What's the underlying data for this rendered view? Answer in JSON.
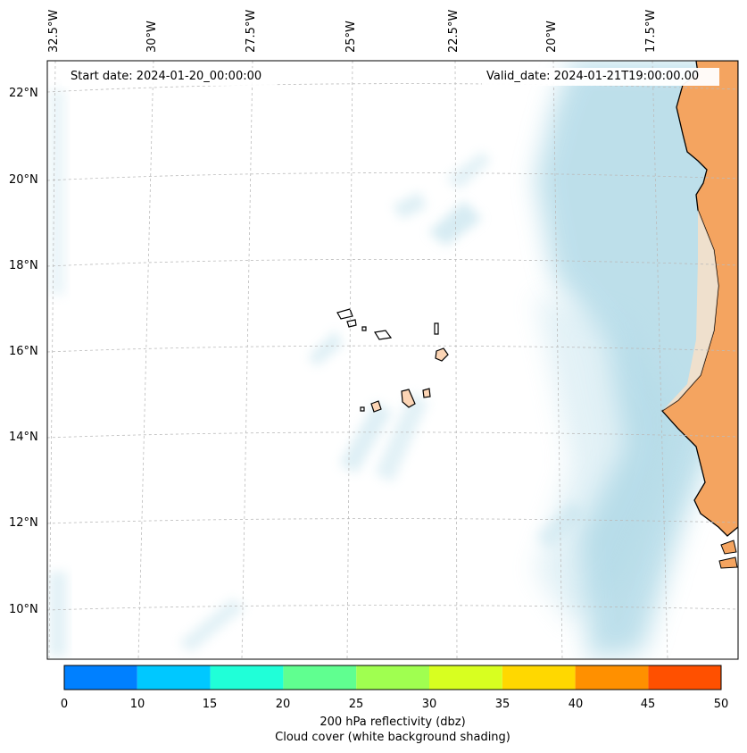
{
  "map": {
    "start_date": "Start date: 2024-01-20_00:00:00",
    "valid_date": "Valid_date: 2024-01-21T19:00:00.00",
    "lon_labels": [
      "32.5°W",
      "30°W",
      "27.5°W",
      "25°W",
      "22.5°W",
      "20°W",
      "17.5°W"
    ],
    "lat_labels": [
      "22°N",
      "20°N",
      "18°N",
      "16°N",
      "14°N",
      "12°N",
      "10°N"
    ]
  },
  "colorbar": {
    "ticks": [
      "0",
      "10",
      "15",
      "20",
      "25",
      "30",
      "35",
      "40",
      "45",
      "50"
    ],
    "colors": [
      "#0080ff",
      "#00c8ff",
      "#20ffd8",
      "#60ff90",
      "#a0ff50",
      "#d8ff20",
      "#ffd800",
      "#ff9000",
      "#ff5000"
    ],
    "label": "200 hPa reflectivity (dbz)",
    "sublabel": "Cloud cover (white background shading)"
  },
  "colors": {
    "cloud": "#add8e6",
    "land": "#f4a460",
    "island": "#fcd5b5"
  }
}
